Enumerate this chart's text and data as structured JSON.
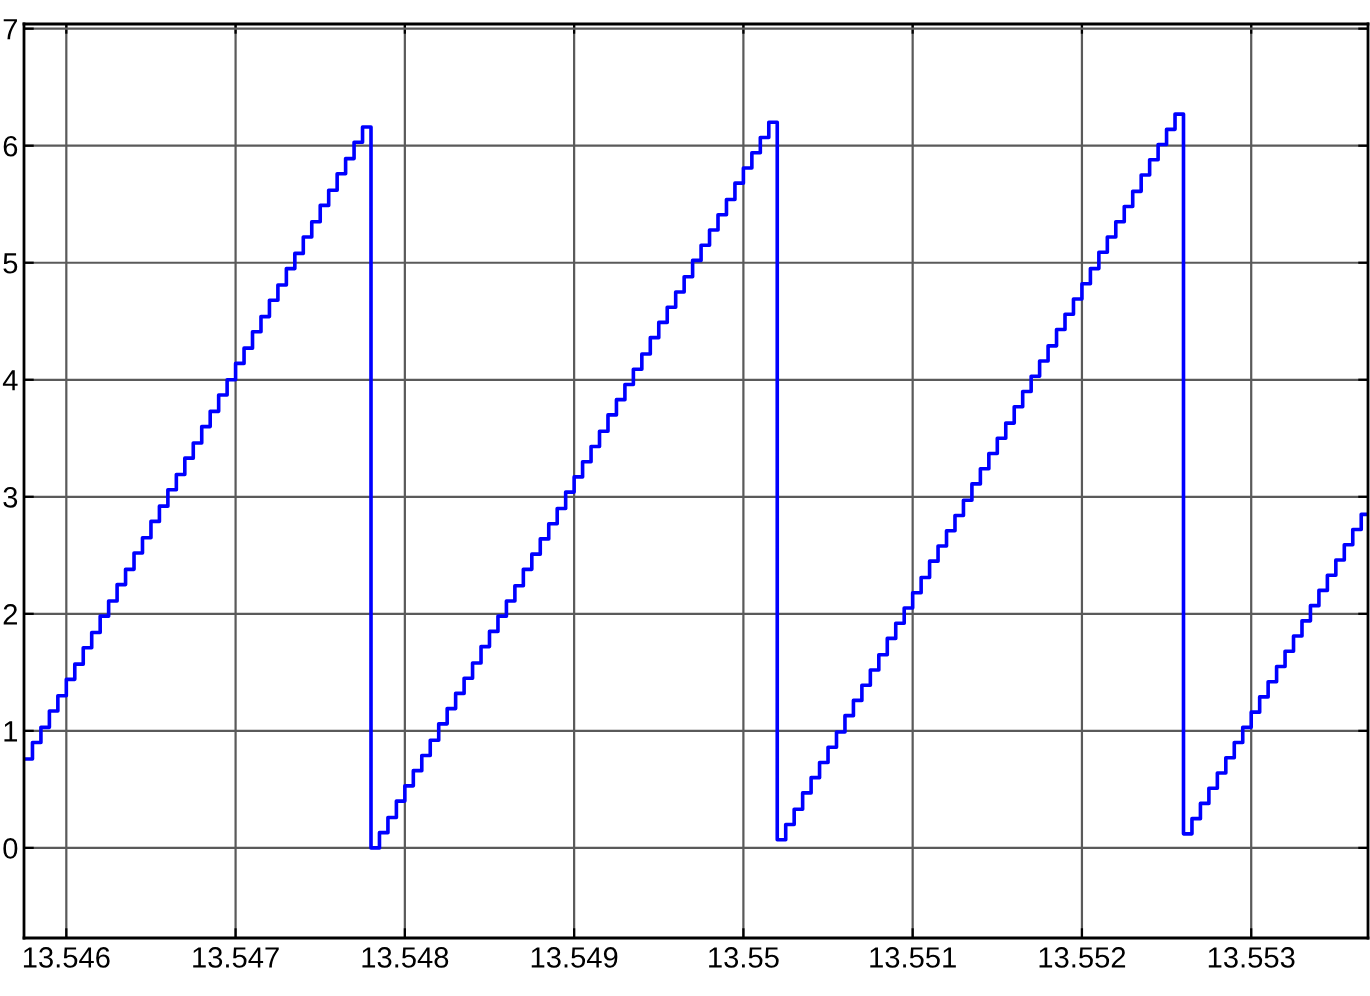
{
  "chart_data": {
    "type": "step",
    "xlim": [
      13.54575,
      13.55369
    ],
    "ylim": [
      -0.77,
      7.04
    ],
    "xticks": [
      {
        "value": 13.546,
        "label": "13.546"
      },
      {
        "value": 13.547,
        "label": "13.547"
      },
      {
        "value": 13.548,
        "label": "13.548"
      },
      {
        "value": 13.549,
        "label": "13.549"
      },
      {
        "value": 13.55,
        "label": "13.55"
      },
      {
        "value": 13.551,
        "label": "13.551"
      },
      {
        "value": 13.552,
        "label": "13.552"
      },
      {
        "value": 13.553,
        "label": "13.553"
      }
    ],
    "yticks": [
      0,
      1,
      2,
      3,
      4,
      5,
      6,
      7
    ],
    "grid": true,
    "marker": "none",
    "line_style": "solid",
    "series": [
      {
        "color": "#0000ff",
        "x": [
          13.54575,
          13.5458,
          13.54585,
          13.5459,
          13.54595,
          13.546,
          13.54605,
          13.5461,
          13.54615,
          13.5462,
          13.54625,
          13.5463,
          13.54635,
          13.5464,
          13.54645,
          13.5465,
          13.54655,
          13.5466,
          13.54665,
          13.5467,
          13.54675,
          13.5468,
          13.54685,
          13.5469,
          13.54695,
          13.547,
          13.54705,
          13.5471,
          13.54715,
          13.5472,
          13.54725,
          13.5473,
          13.54735,
          13.5474,
          13.54745,
          13.5475,
          13.54755,
          13.5476,
          13.54765,
          13.5477,
          13.54775,
          13.5478,
          13.54785,
          13.5479,
          13.54795,
          13.548,
          13.54805,
          13.5481,
          13.54815,
          13.5482,
          13.54825,
          13.5483,
          13.54835,
          13.5484,
          13.54845,
          13.5485,
          13.54855,
          13.5486,
          13.54865,
          13.5487,
          13.54875,
          13.5488,
          13.54885,
          13.5489,
          13.54895,
          13.549,
          13.54905,
          13.5491,
          13.54915,
          13.5492,
          13.54925,
          13.5493,
          13.54935,
          13.5494,
          13.54945,
          13.5495,
          13.54955,
          13.5496,
          13.54965,
          13.5497,
          13.54975,
          13.5498,
          13.54985,
          13.5499,
          13.54995,
          13.55,
          13.55005,
          13.5501,
          13.55015,
          13.5502,
          13.55025,
          13.5503,
          13.55035,
          13.5504,
          13.55045,
          13.5505,
          13.55055,
          13.5506,
          13.55065,
          13.5507,
          13.55075,
          13.5508,
          13.55085,
          13.5509,
          13.55095,
          13.551,
          13.55105,
          13.5511,
          13.55115,
          13.5512,
          13.55125,
          13.5513,
          13.55135,
          13.5514,
          13.55145,
          13.5515,
          13.55155,
          13.5516,
          13.55165,
          13.5517,
          13.55175,
          13.5518,
          13.55185,
          13.5519,
          13.55195,
          13.552,
          13.55205,
          13.5521,
          13.55215,
          13.5522,
          13.55225,
          13.5523,
          13.55235,
          13.5524,
          13.55245,
          13.5525,
          13.55255,
          13.5526,
          13.55265,
          13.5527,
          13.55275,
          13.5528,
          13.55285,
          13.5529,
          13.55295,
          13.553,
          13.55305,
          13.5531,
          13.55315,
          13.5532,
          13.55325,
          13.5533,
          13.55335,
          13.5534,
          13.55345,
          13.5535,
          13.55355,
          13.5536,
          13.55365,
          13.55369
        ],
        "values": [
          0.76,
          0.9,
          1.03,
          1.17,
          1.3,
          1.44,
          1.57,
          1.71,
          1.84,
          1.98,
          2.11,
          2.25,
          2.38,
          2.52,
          2.65,
          2.79,
          2.92,
          3.06,
          3.19,
          3.33,
          3.46,
          3.6,
          3.73,
          3.87,
          4.0,
          4.14,
          4.27,
          4.41,
          4.54,
          4.68,
          4.81,
          4.95,
          5.08,
          5.22,
          5.35,
          5.49,
          5.62,
          5.76,
          5.89,
          6.03,
          6.16,
          0,
          0.13,
          0.26,
          0.4,
          0.53,
          0.66,
          0.79,
          0.92,
          1.06,
          1.19,
          1.32,
          1.45,
          1.58,
          1.72,
          1.85,
          1.98,
          2.11,
          2.24,
          2.38,
          2.51,
          2.64,
          2.77,
          2.9,
          3.04,
          3.17,
          3.3,
          3.43,
          3.56,
          3.7,
          3.83,
          3.96,
          4.09,
          4.22,
          4.36,
          4.49,
          4.62,
          4.75,
          4.88,
          5.02,
          5.15,
          5.28,
          5.41,
          5.54,
          5.68,
          5.81,
          5.94,
          6.07,
          6.2,
          0.07,
          0.2,
          0.33,
          0.47,
          0.6,
          0.73,
          0.86,
          0.99,
          1.13,
          1.26,
          1.39,
          1.52,
          1.65,
          1.79,
          1.92,
          2.05,
          2.18,
          2.31,
          2.45,
          2.58,
          2.71,
          2.84,
          2.97,
          3.11,
          3.24,
          3.37,
          3.5,
          3.63,
          3.77,
          3.9,
          4.03,
          4.16,
          4.29,
          4.43,
          4.56,
          4.69,
          4.82,
          4.95,
          5.09,
          5.22,
          5.35,
          5.48,
          5.61,
          5.75,
          5.88,
          6.01,
          6.14,
          6.27,
          0.12,
          0.25,
          0.38,
          0.51,
          0.64,
          0.77,
          0.9,
          1.03,
          1.16,
          1.29,
          1.42,
          1.55,
          1.68,
          1.81,
          1.94,
          2.07,
          2.2,
          2.33,
          2.46,
          2.59,
          2.72,
          2.85,
          2.85
        ]
      }
    ]
  }
}
